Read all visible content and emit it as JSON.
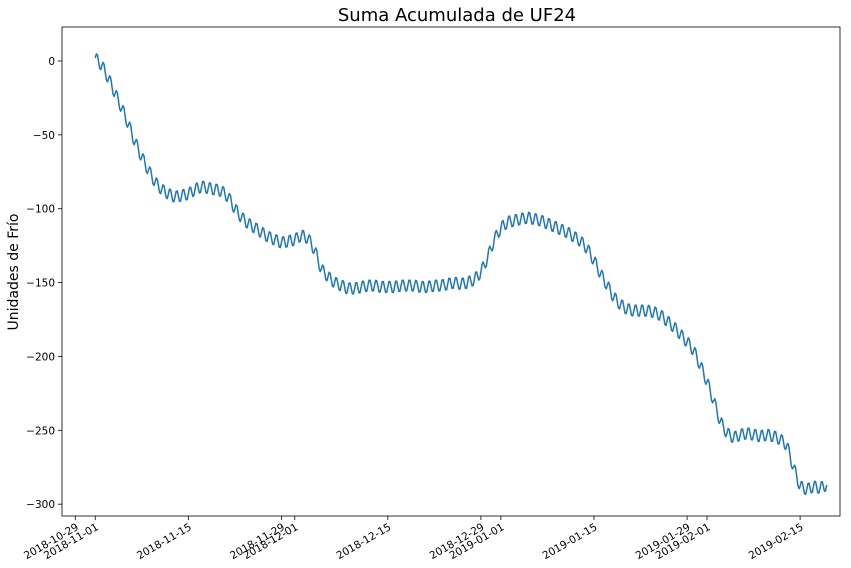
{
  "chart_data": {
    "type": "line",
    "title": "Suma Acumulada de UF24",
    "xlabel": "",
    "ylabel": "Unidades de Frío",
    "x_range": [
      "2018-10-27",
      "2019-02-21"
    ],
    "ylim": [
      -308,
      23
    ],
    "y_ticks": [
      0,
      -50,
      -100,
      -150,
      -200,
      -250,
      -300
    ],
    "x_ticks": [
      {
        "date": "2018-10-29",
        "label": "2018-10-29"
      },
      {
        "date": "2018-11-01",
        "label": "2018-11-01"
      },
      {
        "date": "2018-11-15",
        "label": "2018-11-15"
      },
      {
        "date": "2018-11-29",
        "label": "2018-11-29"
      },
      {
        "date": "2018-12-01",
        "label": "2018-12-01"
      },
      {
        "date": "2018-12-15",
        "label": "2018-12-15"
      },
      {
        "date": "2018-12-29",
        "label": "2018-12-29"
      },
      {
        "date": "2019-01-01",
        "label": "2019-01-01"
      },
      {
        "date": "2019-01-15",
        "label": "2019-01-15"
      },
      {
        "date": "2019-01-29",
        "label": "2019-01-29"
      },
      {
        "date": "2019-02-01",
        "label": "2019-02-01"
      },
      {
        "date": "2019-02-15",
        "label": "2019-02-15"
      }
    ],
    "grid": false,
    "line_color": "#1f77b4",
    "series": [
      {
        "name": "",
        "x": [
          "2018-11-01",
          "2018-11-02",
          "2018-11-03",
          "2018-11-04",
          "2018-11-05",
          "2018-11-06",
          "2018-11-07",
          "2018-11-08",
          "2018-11-09",
          "2018-11-10",
          "2018-11-11",
          "2018-11-12",
          "2018-11-13",
          "2018-11-14",
          "2018-11-15",
          "2018-11-16",
          "2018-11-17",
          "2018-11-18",
          "2018-11-19",
          "2018-11-20",
          "2018-11-21",
          "2018-11-22",
          "2018-11-23",
          "2018-11-24",
          "2018-11-25",
          "2018-11-26",
          "2018-11-27",
          "2018-11-28",
          "2018-11-29",
          "2018-11-30",
          "2018-12-01",
          "2018-12-02",
          "2018-12-03",
          "2018-12-04",
          "2018-12-05",
          "2018-12-06",
          "2018-12-07",
          "2018-12-08",
          "2018-12-09",
          "2018-12-10",
          "2018-12-11",
          "2018-12-12",
          "2018-12-13",
          "2018-12-14",
          "2018-12-15",
          "2018-12-16",
          "2018-12-17",
          "2018-12-18",
          "2018-12-19",
          "2018-12-20",
          "2018-12-21",
          "2018-12-22",
          "2018-12-23",
          "2018-12-24",
          "2018-12-25",
          "2018-12-26",
          "2018-12-27",
          "2018-12-28",
          "2018-12-29",
          "2018-12-30",
          "2018-12-31",
          "2019-01-01",
          "2019-01-02",
          "2019-01-03",
          "2019-01-04",
          "2019-01-05",
          "2019-01-06",
          "2019-01-07",
          "2019-01-08",
          "2019-01-09",
          "2019-01-10",
          "2019-01-11",
          "2019-01-12",
          "2019-01-13",
          "2019-01-14",
          "2019-01-15",
          "2019-01-16",
          "2019-01-17",
          "2019-01-18",
          "2019-01-19",
          "2019-01-20",
          "2019-01-21",
          "2019-01-22",
          "2019-01-23",
          "2019-01-24",
          "2019-01-25",
          "2019-01-26",
          "2019-01-27",
          "2019-01-28",
          "2019-01-29",
          "2019-01-30",
          "2019-01-31",
          "2019-02-01",
          "2019-02-02",
          "2019-02-03",
          "2019-02-04",
          "2019-02-05",
          "2019-02-06",
          "2019-02-07",
          "2019-02-08",
          "2019-02-09",
          "2019-02-10",
          "2019-02-11",
          "2019-02-12",
          "2019-02-13",
          "2019-02-14",
          "2019-02-15",
          "2019-02-16",
          "2019-02-17",
          "2019-02-18",
          "2019-02-19"
        ],
        "y": [
          2,
          -3,
          -12,
          -22,
          -32,
          -43,
          -55,
          -65,
          -74,
          -82,
          -87,
          -90,
          -92,
          -91,
          -90,
          -87,
          -85,
          -86,
          -87,
          -88,
          -92,
          -100,
          -106,
          -110,
          -113,
          -116,
          -119,
          -121,
          -123,
          -122,
          -121,
          -118,
          -120,
          -128,
          -141,
          -146,
          -150,
          -152,
          -154,
          -154,
          -153,
          -152,
          -152,
          -153,
          -153,
          -153,
          -152,
          -152,
          -152,
          -153,
          -153,
          -152,
          -152,
          -151,
          -150,
          -151,
          -150,
          -148,
          -143,
          -133,
          -121,
          -113,
          -109,
          -108,
          -107,
          -106,
          -107,
          -108,
          -110,
          -112,
          -114,
          -116,
          -119,
          -122,
          -127,
          -135,
          -144,
          -152,
          -160,
          -165,
          -168,
          -169,
          -169,
          -169,
          -170,
          -172,
          -176,
          -180,
          -185,
          -190,
          -196,
          -206,
          -217,
          -230,
          -244,
          -252,
          -255,
          -253,
          -252,
          -253,
          -254,
          -253,
          -254,
          -256,
          -260,
          -275,
          -288,
          -290,
          -288,
          -289,
          -287
        ]
      }
    ]
  }
}
